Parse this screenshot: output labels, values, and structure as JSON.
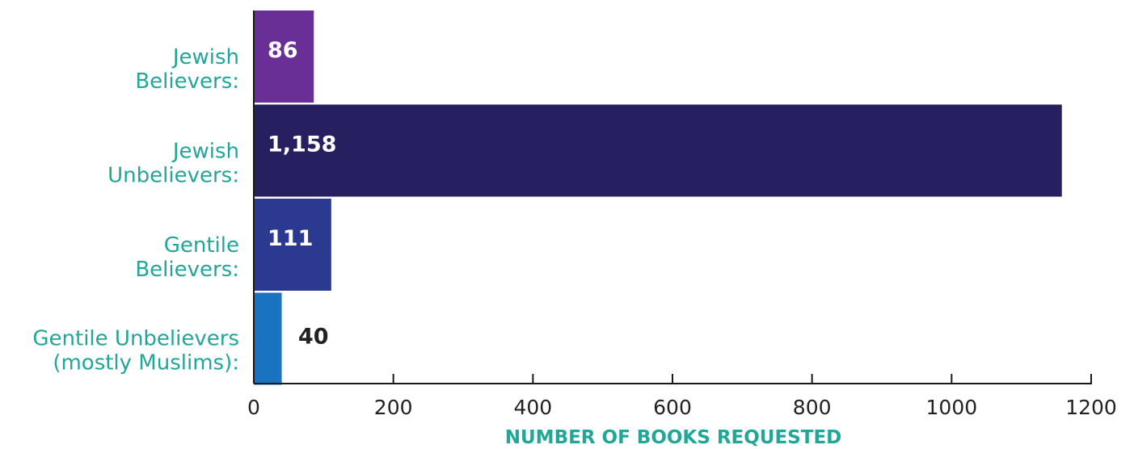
{
  "chart_data": {
    "type": "bar",
    "orientation": "horizontal",
    "categories": [
      [
        "Jewish",
        "Believers:"
      ],
      [
        "Jewish",
        "Unbelievers:"
      ],
      [
        "Gentile",
        "Believers:"
      ],
      [
        "Gentile Unbelievers",
        "(mostly Muslims):"
      ]
    ],
    "values": [
      86,
      1158,
      111,
      40
    ],
    "value_labels": [
      "86",
      "1,158",
      "111",
      "40"
    ],
    "bar_colors": [
      "#6a2f96",
      "#262060",
      "#2b3990",
      "#1a73c0"
    ],
    "label_colors": [
      "#ffffff",
      "#ffffff",
      "#ffffff",
      "#222222"
    ],
    "label_position": [
      "inside",
      "inside",
      "inside",
      "outside"
    ],
    "xlabel": "NUMBER OF BOOKS REQUESTED",
    "ylabel": "",
    "xlim": [
      0,
      1200
    ],
    "xticks": [
      0,
      200,
      400,
      600,
      800,
      1000,
      1200
    ],
    "grid": false,
    "legend": "none",
    "colors": {
      "category_text": "#22a698",
      "axis_title": "#22a698",
      "tick_text": "#222222",
      "axis": "#1a1a1a"
    }
  }
}
